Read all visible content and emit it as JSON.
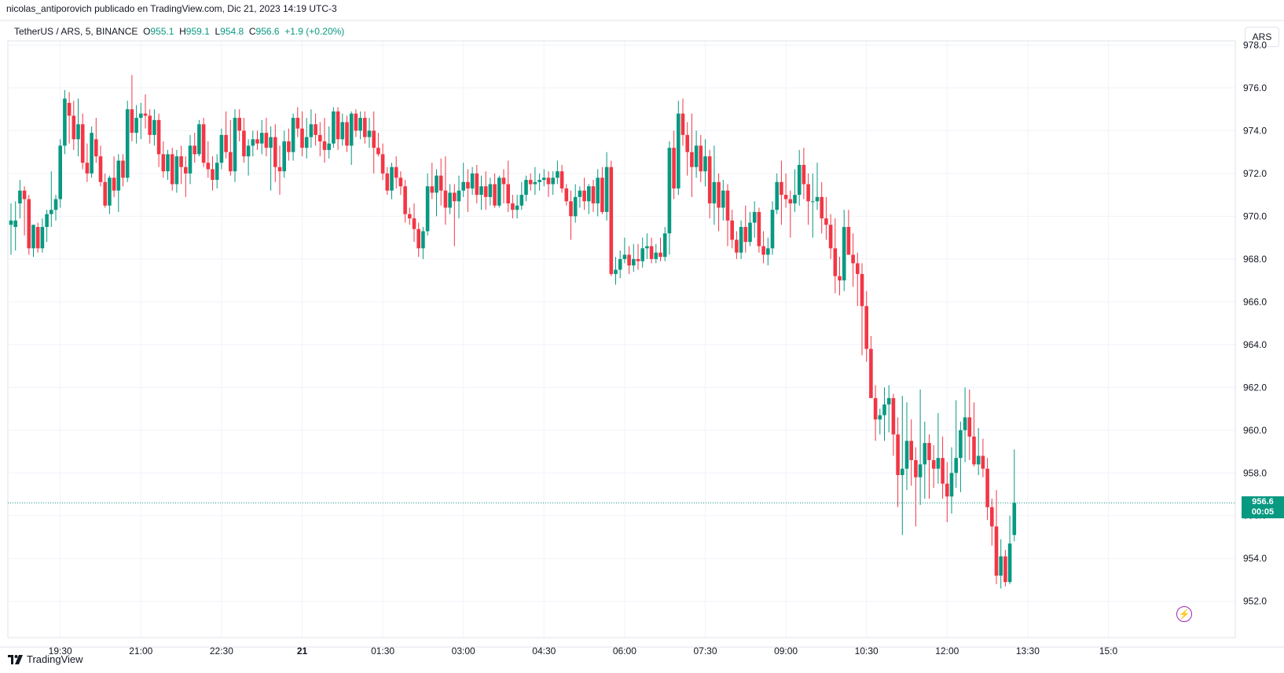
{
  "attribution": "nicolas_antiporovich publicado en TradingView.com, Dic 21, 2023 14:19 UTC-3",
  "legend": {
    "symbol": "TetherUS / ARS, 5, BINANCE",
    "o_label": "O",
    "o": "955.1",
    "h_label": "H",
    "h": "959.1",
    "l_label": "L",
    "l": "954.8",
    "c_label": "C",
    "c": "956.6",
    "change": "+1.9 (+0.20%)"
  },
  "currency_button": "ARS",
  "price_tag": {
    "price": "956.6",
    "countdown": "00:05"
  },
  "brand": "TradingView",
  "icons": {
    "brand": "tradingview-logo-icon",
    "alert": "lightning-icon"
  },
  "colors": {
    "up": "#089981",
    "down": "#F23645",
    "grid": "#F0F3FA",
    "price_line": "#089981"
  },
  "chart_data": {
    "type": "candlestick",
    "ylim": [
      950.3,
      978.2
    ],
    "y_ticks": [
      952.0,
      954.0,
      956.0,
      958.0,
      960.0,
      962.0,
      964.0,
      966.0,
      968.0,
      970.0,
      972.0,
      974.0,
      976.0,
      978.0
    ],
    "y_tick_labels": [
      "952.0",
      "954.0",
      "956.0",
      "958.0",
      "960.0",
      "962.0",
      "964.0",
      "966.0",
      "968.0",
      "970.0",
      "972.0",
      "974.0",
      "976.0",
      "978.0"
    ],
    "x_ticks": [
      {
        "label": "19:30",
        "bar": 11
      },
      {
        "label": "21:00",
        "bar": 29
      },
      {
        "label": "22:30",
        "bar": 47
      },
      {
        "label": "21",
        "bar": 65,
        "bold": true
      },
      {
        "label": "01:30",
        "bar": 83
      },
      {
        "label": "03:00",
        "bar": 101
      },
      {
        "label": "04:30",
        "bar": 119
      },
      {
        "label": "06:00",
        "bar": 137
      },
      {
        "label": "07:30",
        "bar": 155
      },
      {
        "label": "09:00",
        "bar": 173
      },
      {
        "label": "10:30",
        "bar": 191
      },
      {
        "label": "12:00",
        "bar": 209
      },
      {
        "label": "13:30",
        "bar": 227
      },
      {
        "label": "15:0",
        "bar": 245
      }
    ],
    "last_price": 956.6,
    "candles": [
      [
        969.6,
        970.6,
        968.2,
        969.8
      ],
      [
        969.5,
        970.7,
        968.4,
        969.8
      ],
      [
        970.6,
        971.7,
        969.9,
        971.2
      ],
      [
        971.2,
        971.4,
        969.1,
        970.8
      ],
      [
        970.8,
        971.0,
        968.2,
        968.5
      ],
      [
        968.5,
        969.6,
        968.1,
        969.6
      ],
      [
        969.5,
        969.7,
        968.3,
        968.5
      ],
      [
        968.5,
        969.9,
        968.3,
        969.5
      ],
      [
        969.5,
        970.3,
        968.8,
        970.1
      ],
      [
        970.1,
        972.1,
        969.5,
        970.3
      ],
      [
        970.3,
        971.0,
        969.8,
        970.8
      ],
      [
        970.8,
        973.6,
        970.4,
        973.3
      ],
      [
        973.3,
        975.9,
        972.9,
        975.5
      ],
      [
        975.3,
        975.8,
        973.4,
        974.7
      ],
      [
        974.7,
        975.4,
        973.1,
        973.6
      ],
      [
        973.6,
        975.5,
        972.8,
        974.3
      ],
      [
        974.3,
        974.8,
        972.2,
        972.5
      ],
      [
        972.5,
        973.4,
        971.6,
        972.0
      ],
      [
        972.0,
        974.2,
        971.8,
        973.9
      ],
      [
        973.6,
        974.6,
        972.5,
        972.8
      ],
      [
        972.8,
        973.3,
        971.4,
        971.6
      ],
      [
        971.6,
        972.0,
        970.4,
        970.5
      ],
      [
        970.5,
        971.9,
        970.1,
        971.8
      ],
      [
        971.8,
        972.8,
        970.9,
        971.2
      ],
      [
        971.2,
        972.9,
        970.2,
        972.6
      ],
      [
        972.6,
        972.9,
        971.4,
        971.8
      ],
      [
        971.8,
        975.4,
        971.6,
        975.0
      ],
      [
        975.0,
        976.6,
        973.5,
        973.9
      ],
      [
        973.9,
        975.2,
        973.4,
        974.6
      ],
      [
        974.6,
        975.3,
        973.6,
        974.8
      ],
      [
        974.8,
        975.7,
        974.1,
        974.7
      ],
      [
        974.7,
        975.0,
        973.4,
        973.8
      ],
      [
        973.8,
        975.0,
        973.3,
        974.5
      ],
      [
        974.5,
        974.8,
        972.3,
        972.9
      ],
      [
        972.9,
        973.5,
        971.8,
        972.1
      ],
      [
        972.1,
        973.1,
        971.7,
        972.9
      ],
      [
        972.9,
        973.2,
        971.2,
        971.5
      ],
      [
        971.5,
        973.1,
        971.1,
        972.8
      ],
      [
        972.8,
        973.3,
        971.5,
        972.3
      ],
      [
        972.3,
        972.8,
        970.9,
        972.0
      ],
      [
        972.0,
        973.8,
        971.5,
        973.3
      ],
      [
        973.3,
        973.9,
        972.5,
        972.9
      ],
      [
        972.9,
        974.5,
        972.8,
        974.3
      ],
      [
        974.3,
        974.6,
        972.3,
        972.5
      ],
      [
        972.5,
        973.5,
        971.8,
        972.2
      ],
      [
        972.2,
        972.8,
        971.2,
        971.7
      ],
      [
        971.7,
        972.9,
        971.3,
        972.5
      ],
      [
        972.5,
        974.1,
        972.2,
        973.8
      ],
      [
        973.8,
        974.9,
        972.7,
        973.0
      ],
      [
        973.0,
        974.5,
        971.9,
        972.1
      ],
      [
        972.1,
        975.0,
        971.6,
        974.6
      ],
      [
        974.6,
        975.0,
        973.5,
        974.0
      ],
      [
        974.0,
        974.6,
        972.5,
        972.8
      ],
      [
        972.8,
        973.6,
        971.9,
        973.3
      ],
      [
        973.3,
        974.0,
        972.8,
        973.6
      ],
      [
        973.6,
        974.0,
        973.1,
        973.4
      ],
      [
        973.4,
        974.5,
        972.9,
        973.9
      ],
      [
        973.9,
        974.6,
        972.8,
        973.2
      ],
      [
        973.2,
        974.2,
        971.2,
        973.7
      ],
      [
        973.7,
        974.3,
        971.6,
        972.3
      ],
      [
        972.3,
        973.3,
        971.0,
        972.1
      ],
      [
        972.1,
        974.0,
        971.8,
        973.5
      ],
      [
        973.5,
        974.1,
        972.6,
        973.0
      ],
      [
        973.0,
        974.8,
        972.6,
        974.6
      ],
      [
        974.6,
        975.1,
        973.7,
        974.1
      ],
      [
        974.1,
        974.9,
        972.8,
        973.2
      ],
      [
        973.2,
        974.6,
        972.7,
        973.7
      ],
      [
        973.7,
        975.0,
        973.2,
        974.3
      ],
      [
        974.3,
        974.8,
        973.3,
        973.8
      ],
      [
        973.8,
        974.4,
        972.8,
        973.5
      ],
      [
        973.5,
        974.6,
        972.5,
        973.1
      ],
      [
        973.1,
        974.2,
        972.7,
        973.4
      ],
      [
        973.4,
        975.1,
        973.2,
        974.9
      ],
      [
        974.9,
        975.1,
        973.1,
        973.6
      ],
      [
        973.6,
        974.8,
        973.3,
        974.4
      ],
      [
        974.4,
        974.7,
        973.0,
        973.3
      ],
      [
        973.3,
        974.9,
        972.4,
        974.8
      ],
      [
        974.8,
        975.0,
        973.7,
        974.0
      ],
      [
        974.0,
        974.9,
        973.6,
        974.6
      ],
      [
        974.6,
        974.9,
        973.4,
        973.7
      ],
      [
        973.7,
        974.6,
        973.2,
        974.0
      ],
      [
        974.0,
        974.9,
        972.0,
        973.2
      ],
      [
        973.2,
        973.9,
        972.8,
        972.9
      ],
      [
        972.9,
        973.4,
        971.7,
        972.0
      ],
      [
        972.0,
        972.3,
        971.0,
        971.2
      ],
      [
        971.2,
        972.5,
        970.8,
        972.3
      ],
      [
        972.3,
        972.8,
        971.3,
        971.8
      ],
      [
        971.8,
        972.1,
        971.0,
        971.4
      ],
      [
        971.4,
        971.7,
        969.7,
        970.1
      ],
      [
        970.1,
        970.4,
        969.6,
        969.9
      ],
      [
        969.9,
        970.6,
        968.8,
        969.4
      ],
      [
        969.4,
        969.7,
        968.1,
        968.5
      ],
      [
        968.5,
        969.5,
        968.0,
        969.3
      ],
      [
        969.3,
        972.0,
        969.1,
        971.4
      ],
      [
        971.4,
        972.5,
        970.8,
        971.1
      ],
      [
        971.1,
        972.2,
        970.0,
        971.9
      ],
      [
        971.9,
        972.7,
        970.5,
        971.2
      ],
      [
        971.2,
        972.8,
        969.6,
        970.4
      ],
      [
        970.4,
        971.5,
        970.1,
        971.1
      ],
      [
        971.1,
        971.5,
        968.6,
        970.7
      ],
      [
        970.7,
        971.9,
        969.9,
        971.2
      ],
      [
        971.2,
        972.5,
        970.9,
        971.6
      ],
      [
        971.6,
        972.2,
        970.2,
        971.3
      ],
      [
        971.3,
        972.3,
        971.0,
        972.0
      ],
      [
        972.0,
        972.4,
        970.6,
        971.0
      ],
      [
        971.0,
        971.9,
        970.3,
        971.4
      ],
      [
        971.4,
        972.1,
        970.3,
        970.9
      ],
      [
        970.9,
        971.8,
        970.5,
        971.5
      ],
      [
        971.5,
        972.0,
        970.4,
        970.5
      ],
      [
        970.5,
        971.9,
        970.4,
        971.8
      ],
      [
        971.8,
        972.2,
        970.6,
        971.5
      ],
      [
        971.5,
        972.6,
        970.2,
        970.6
      ],
      [
        970.6,
        971.0,
        969.9,
        970.3
      ],
      [
        970.3,
        971.0,
        969.9,
        970.5
      ],
      [
        970.5,
        971.6,
        970.3,
        971.0
      ],
      [
        971.0,
        971.9,
        970.7,
        971.7
      ],
      [
        971.7,
        972.0,
        971.2,
        971.5
      ],
      [
        971.5,
        972.3,
        971.0,
        971.6
      ],
      [
        971.6,
        972.0,
        971.2,
        971.7
      ],
      [
        971.7,
        972.2,
        971.4,
        971.8
      ],
      [
        971.8,
        972.1,
        970.9,
        971.5
      ],
      [
        971.5,
        972.1,
        971.0,
        971.8
      ],
      [
        971.8,
        972.6,
        971.5,
        972.1
      ],
      [
        972.1,
        972.4,
        971.1,
        971.3
      ],
      [
        971.3,
        971.5,
        970.5,
        970.7
      ],
      [
        970.7,
        971.2,
        968.9,
        970.0
      ],
      [
        970.0,
        971.5,
        969.7,
        970.9
      ],
      [
        970.9,
        971.4,
        970.4,
        971.2
      ],
      [
        971.2,
        971.8,
        970.3,
        970.7
      ],
      [
        970.7,
        971.5,
        970.1,
        971.4
      ],
      [
        971.4,
        971.7,
        970.2,
        970.6
      ],
      [
        970.6,
        972.2,
        970.0,
        971.8
      ],
      [
        971.8,
        972.3,
        970.1,
        970.2
      ],
      [
        970.2,
        973.0,
        969.8,
        972.3
      ],
      [
        972.3,
        972.6,
        967.2,
        967.3
      ],
      [
        967.3,
        968.1,
        966.8,
        967.5
      ],
      [
        967.5,
        968.4,
        967.1,
        968.0
      ],
      [
        968.0,
        969.0,
        967.8,
        968.2
      ],
      [
        968.2,
        968.6,
        967.3,
        967.7
      ],
      [
        967.7,
        968.7,
        967.4,
        968.0
      ],
      [
        968.0,
        968.7,
        967.5,
        967.9
      ],
      [
        967.9,
        969.0,
        967.6,
        968.5
      ],
      [
        968.5,
        969.2,
        968.0,
        968.6
      ],
      [
        968.6,
        969.0,
        967.8,
        968.0
      ],
      [
        968.0,
        968.7,
        967.8,
        968.3
      ],
      [
        968.3,
        969.0,
        967.9,
        968.1
      ],
      [
        968.1,
        969.5,
        967.9,
        969.2
      ],
      [
        969.2,
        973.5,
        968.2,
        973.2
      ],
      [
        973.2,
        974.0,
        970.8,
        971.3
      ],
      [
        971.3,
        975.4,
        971.0,
        974.8
      ],
      [
        974.8,
        975.5,
        973.3,
        973.8
      ],
      [
        973.8,
        974.4,
        971.9,
        973.0
      ],
      [
        973.0,
        974.8,
        970.9,
        972.3
      ],
      [
        972.3,
        974.0,
        971.8,
        973.3
      ],
      [
        973.3,
        973.8,
        971.6,
        972.1
      ],
      [
        972.1,
        973.6,
        971.4,
        972.8
      ],
      [
        972.8,
        973.1,
        969.9,
        970.6
      ],
      [
        970.6,
        973.3,
        969.6,
        971.6
      ],
      [
        971.6,
        972.0,
        969.3,
        970.4
      ],
      [
        970.4,
        971.7,
        969.8,
        971.2
      ],
      [
        971.2,
        971.5,
        968.6,
        969.8
      ],
      [
        969.8,
        970.3,
        968.5,
        968.9
      ],
      [
        968.9,
        969.3,
        968.0,
        968.3
      ],
      [
        968.3,
        969.8,
        968.0,
        969.5
      ],
      [
        969.5,
        970.5,
        968.3,
        968.8
      ],
      [
        968.8,
        970.2,
        968.6,
        969.7
      ],
      [
        969.7,
        970.7,
        969.0,
        970.2
      ],
      [
        970.2,
        970.4,
        968.3,
        968.6
      ],
      [
        968.6,
        969.3,
        967.8,
        968.2
      ],
      [
        968.2,
        969.0,
        967.7,
        968.5
      ],
      [
        968.5,
        970.7,
        968.2,
        970.3
      ],
      [
        970.3,
        972.0,
        970.1,
        971.6
      ],
      [
        971.6,
        972.6,
        969.6,
        971.0
      ],
      [
        971.0,
        972.0,
        970.4,
        970.8
      ],
      [
        970.8,
        971.2,
        969.0,
        970.6
      ],
      [
        970.6,
        972.2,
        970.2,
        971.0
      ],
      [
        971.0,
        973.1,
        970.5,
        972.4
      ],
      [
        972.4,
        973.2,
        970.8,
        971.5
      ],
      [
        971.5,
        972.0,
        969.6,
        970.7
      ],
      [
        970.7,
        972.0,
        969.0,
        970.7
      ],
      [
        970.7,
        972.5,
        970.3,
        970.9
      ],
      [
        970.9,
        971.6,
        969.2,
        969.9
      ],
      [
        969.9,
        970.9,
        968.9,
        969.6
      ],
      [
        969.6,
        970.1,
        968.0,
        968.5
      ],
      [
        968.5,
        969.9,
        966.4,
        967.2
      ],
      [
        967.2,
        968.1,
        966.3,
        967.0
      ],
      [
        967.0,
        970.3,
        966.5,
        969.5
      ],
      [
        969.5,
        970.3,
        968.4,
        968.2
      ],
      [
        968.2,
        969.2,
        966.7,
        967.8
      ],
      [
        967.8,
        968.3,
        965.8,
        967.3
      ],
      [
        967.3,
        967.8,
        963.5,
        965.8
      ],
      [
        965.8,
        966.5,
        963.2,
        963.8
      ],
      [
        963.8,
        964.4,
        961.7,
        961.5
      ],
      [
        961.5,
        962.1,
        959.5,
        960.5
      ],
      [
        960.5,
        961.0,
        959.8,
        960.7
      ],
      [
        960.7,
        962.0,
        959.5,
        961.2
      ],
      [
        961.2,
        962.1,
        959.9,
        961.5
      ],
      [
        961.5,
        961.7,
        958.8,
        959.8
      ],
      [
        959.8,
        960.6,
        956.4,
        957.9
      ],
      [
        957.9,
        961.6,
        955.1,
        958.2
      ],
      [
        958.2,
        961.3,
        957.2,
        959.5
      ],
      [
        959.5,
        960.5,
        957.4,
        958.6
      ],
      [
        958.6,
        959.2,
        955.5,
        957.8
      ],
      [
        957.8,
        961.9,
        956.5,
        958.4
      ],
      [
        958.4,
        960.4,
        956.8,
        959.4
      ],
      [
        959.4,
        959.8,
        956.8,
        958.6
      ],
      [
        958.6,
        959.3,
        957.3,
        958.2
      ],
      [
        958.2,
        960.8,
        957.5,
        958.7
      ],
      [
        958.7,
        959.7,
        956.8,
        957.5
      ],
      [
        957.5,
        958.5,
        955.7,
        956.9
      ],
      [
        956.9,
        959.2,
        956.1,
        958.0
      ],
      [
        958.0,
        961.4,
        957.3,
        958.7
      ],
      [
        958.7,
        960.4,
        957.1,
        960.0
      ],
      [
        960.0,
        962.0,
        958.5,
        960.6
      ],
      [
        960.6,
        961.9,
        958.6,
        959.7
      ],
      [
        959.7,
        961.3,
        958.3,
        958.4
      ],
      [
        958.4,
        960.1,
        957.9,
        958.8
      ],
      [
        958.8,
        959.6,
        957.8,
        958.2
      ],
      [
        958.2,
        958.7,
        955.8,
        956.4
      ],
      [
        956.4,
        956.8,
        954.6,
        955.5
      ],
      [
        955.5,
        957.2,
        952.8,
        953.2
      ],
      [
        953.2,
        954.9,
        952.6,
        954.1
      ],
      [
        954.1,
        954.4,
        952.7,
        952.9
      ],
      [
        952.9,
        956.0,
        952.8,
        954.7
      ],
      [
        955.1,
        959.1,
        954.8,
        956.6
      ]
    ]
  }
}
